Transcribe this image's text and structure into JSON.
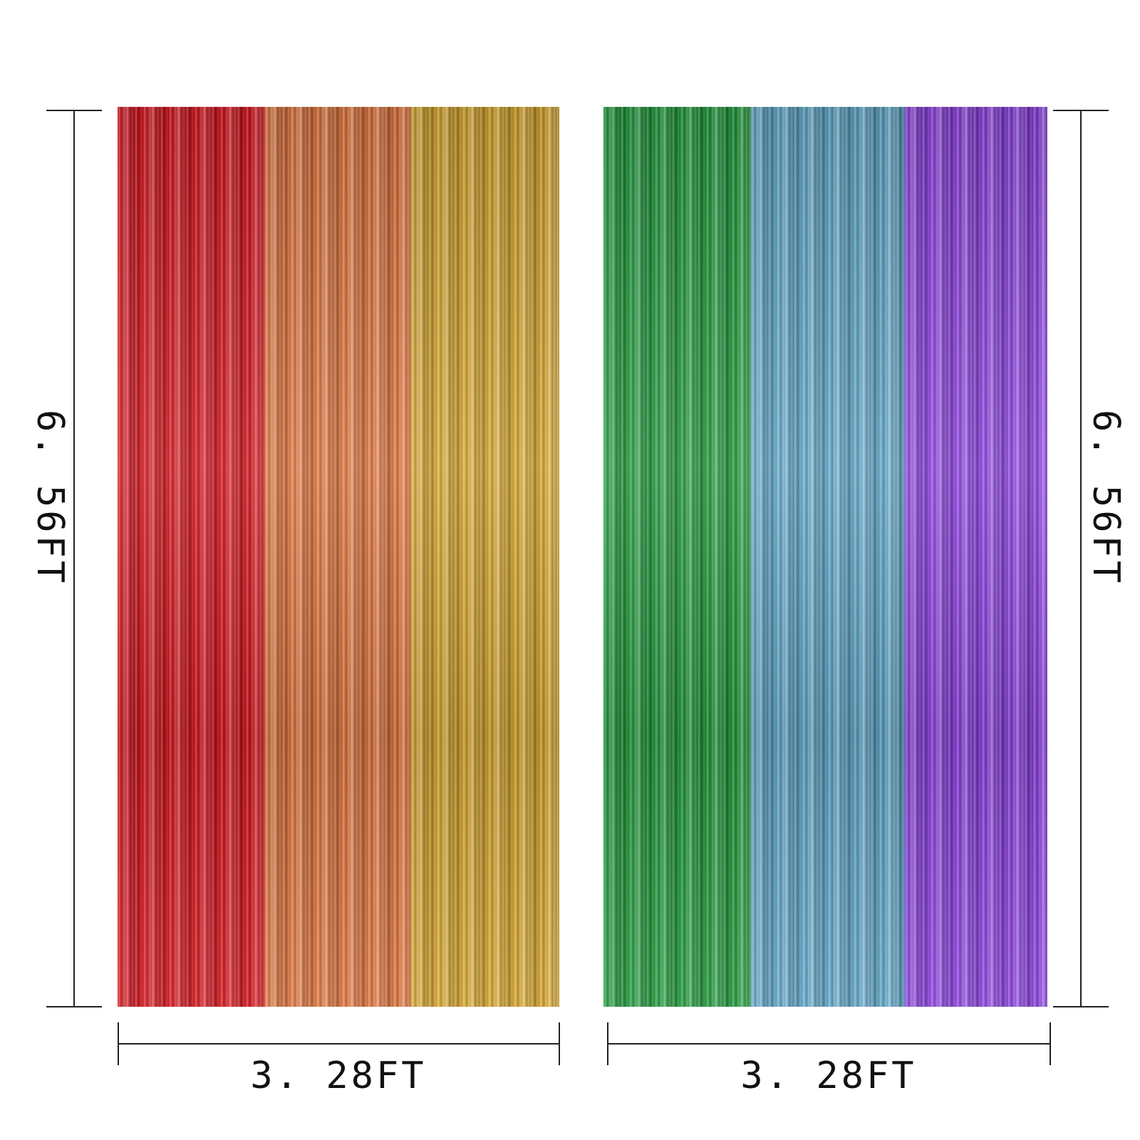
{
  "dimensions": {
    "height_label": "6. 56FT",
    "width_label": "3. 28FT"
  },
  "panels": [
    {
      "name": "left",
      "strips": [
        {
          "color": "red",
          "hex": "#d6121a"
        },
        {
          "color": "orange",
          "hex": "#e0733a"
        },
        {
          "color": "gold",
          "hex": "#d6a52a"
        }
      ]
    },
    {
      "name": "right",
      "strips": [
        {
          "color": "green",
          "hex": "#1f9a3a"
        },
        {
          "color": "blue",
          "hex": "#5ea6c8"
        },
        {
          "color": "purple",
          "hex": "#8a3ee0"
        }
      ]
    }
  ]
}
